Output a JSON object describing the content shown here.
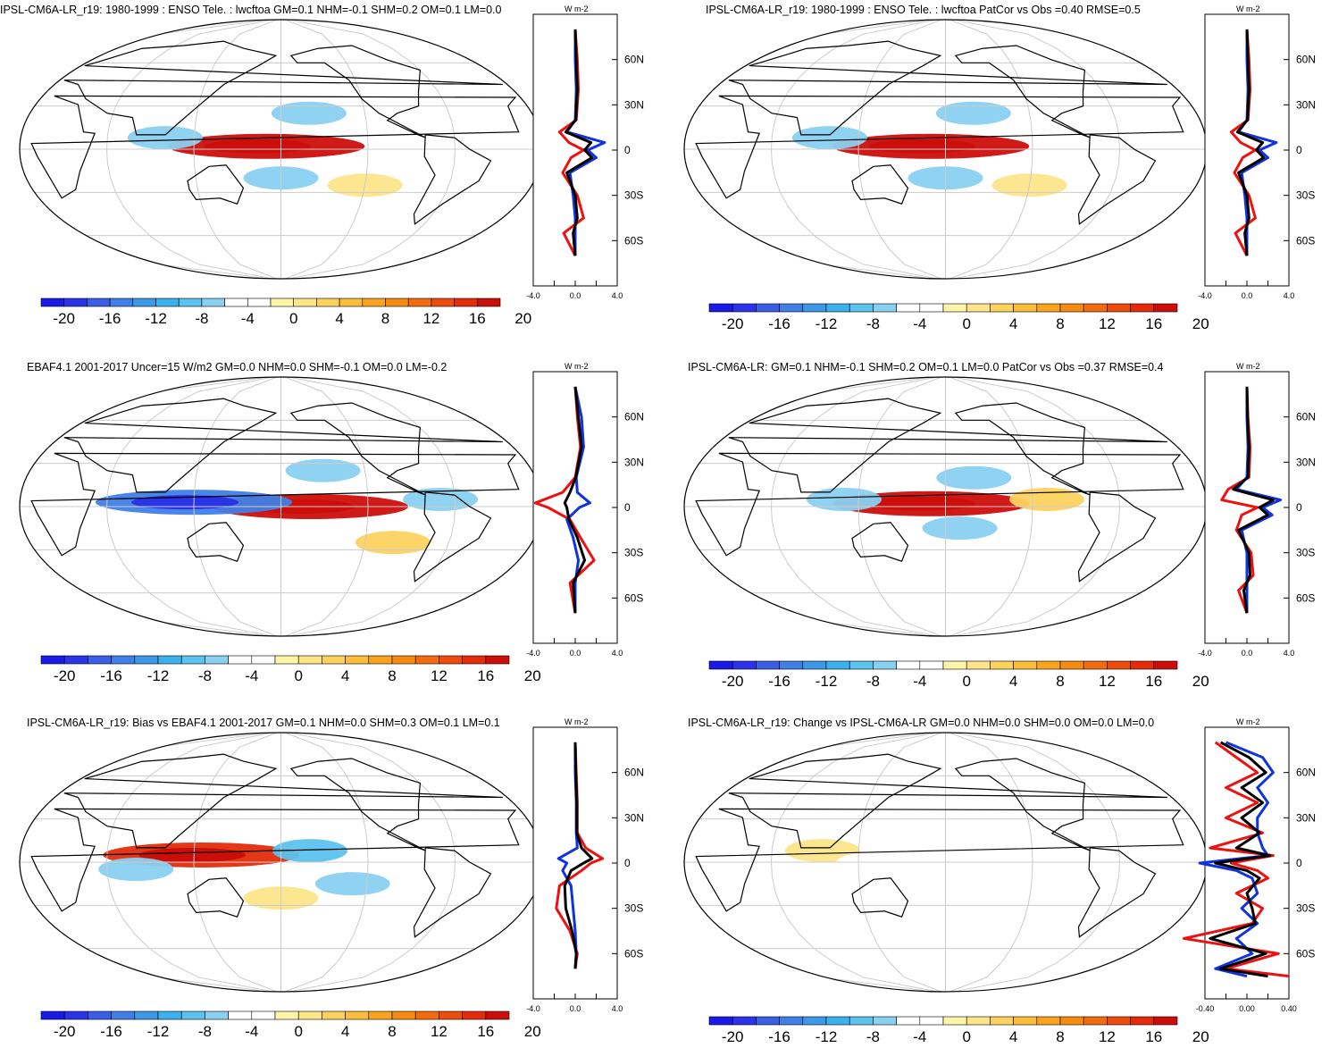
{
  "colorbar": {
    "labels": [
      "-20",
      "-16",
      "-12",
      "-8",
      "-4",
      "0",
      "4",
      "8",
      "12",
      "16",
      "20"
    ],
    "colors": [
      "#1a1ae6",
      "#2b33e6",
      "#3a5ee6",
      "#3f7fe6",
      "#3d99e6",
      "#3cb2ec",
      "#5cc3ee",
      "#8ad0f0",
      "#ffffff",
      "#ffffff",
      "#fff5a8",
      "#fde58a",
      "#fcd25f",
      "#fbbd3a",
      "#f9a41e",
      "#f68b12",
      "#f26b0e",
      "#ec4c0c",
      "#e22c0b",
      "#cc0e0b"
    ]
  },
  "zonal_axis": {
    "unit": "W m-2",
    "lat_labels": [
      "60N",
      "30N",
      "0",
      "30S",
      "60S"
    ],
    "series_colors": {
      "model": "#ee1111",
      "obs": "#1133dd",
      "mean": "#000000"
    }
  },
  "panels": [
    {
      "title": "IPSL-CM6A-LR_r19: 1980-1999 : ENSO Tele. : lwcftoa GM=0.1 NHM=-0.1 SHM=0.2 OM=0.1 LM=0.0",
      "x_ticks": [
        "-4.0",
        "0.0",
        "4.0"
      ]
    },
    {
      "title": "IPSL-CM6A-LR_r19: 1980-1999 : ENSO Tele. : lwcftoa PatCor vs Obs =0.40 RMSE=0.5",
      "x_ticks": [
        "-4.0",
        "0.0",
        "4.0"
      ]
    },
    {
      "title": "EBAF4.1 2001-2017 Uncer=15 W/m2 GM=0.0 NHM=0.0 SHM=-0.1 OM=0.0 LM=-0.2",
      "x_ticks": [
        "-4.0",
        "0.0",
        "4.0"
      ]
    },
    {
      "title": "IPSL-CM6A-LR: GM=0.1 NHM=-0.1 SHM=0.2 OM=0.1 LM=0.0 PatCor vs Obs =0.37 RMSE=0.4",
      "x_ticks": [
        "-4.0",
        "0.0",
        "4.0"
      ]
    },
    {
      "title": "IPSL-CM6A-LR_r19: Bias vs EBAF4.1 2001-2017 GM=0.1 NHM=0.0 SHM=0.3 OM=0.1 LM=0.1",
      "x_ticks": [
        "-4.0",
        "0.0",
        "4.0"
      ]
    },
    {
      "title": "IPSL-CM6A-LR_r19: Change vs IPSL-CM6A-LR GM=0.0 NHM=0.0 SHM=0.0 OM=0.0 LM=0.0",
      "x_ticks": [
        "-0.40",
        "0.00",
        "0.40"
      ]
    }
  ],
  "chart_data": [
    {
      "type": "heatmap",
      "panel": 0,
      "projection": "Robinson, 180E centered",
      "value_range": [
        -20,
        20
      ],
      "features": [
        {
          "desc": "warm",
          "lon": 170,
          "lat": 2,
          "value": 18
        },
        {
          "desc": "cool",
          "lon": 200,
          "lat": 25,
          "value": -6
        },
        {
          "desc": "cool",
          "lon": 180,
          "lat": -20,
          "value": -6
        },
        {
          "desc": "cool",
          "lon": 100,
          "lat": 8,
          "value": -6
        },
        {
          "desc": "warm",
          "lon": 240,
          "lat": -25,
          "value": 3
        }
      ]
    },
    {
      "type": "line",
      "panel": 0,
      "xlim": [
        -4,
        4
      ],
      "ylim": [
        -90,
        90
      ],
      "series": [
        {
          "lat": [
            80,
            60,
            40,
            20,
            12,
            5,
            0,
            -5,
            -15,
            -30,
            -45,
            -55,
            -70
          ],
          "values": [
            0,
            0.2,
            0.3,
            0.1,
            -1.5,
            -0.6,
            0.8,
            -0.4,
            -1.2,
            0.2,
            0.8,
            -1.1,
            0
          ]
        },
        {
          "lat": [
            80,
            60,
            40,
            20,
            12,
            5,
            0,
            -5,
            -15,
            -30,
            -45,
            -55,
            -70
          ],
          "values": [
            0,
            0,
            0.1,
            0,
            -0.8,
            2.8,
            1.2,
            2.0,
            -0.5,
            -0.2,
            0,
            0,
            0
          ]
        },
        {
          "lat": [
            80,
            60,
            40,
            20,
            12,
            5,
            0,
            -5,
            -15,
            -30,
            -45,
            -55,
            -70
          ],
          "values": [
            0,
            0.1,
            0.2,
            0.05,
            -0.9,
            1.5,
            0.9,
            1.6,
            -0.8,
            0,
            0.2,
            -0.2,
            0
          ]
        }
      ]
    },
    {
      "type": "heatmap",
      "panel": 1,
      "projection": "Robinson, 180E centered",
      "value_range": [
        -20,
        20
      ],
      "features": [
        {
          "desc": "warm",
          "lon": 170,
          "lat": 2,
          "value": 18
        },
        {
          "desc": "cool",
          "lon": 200,
          "lat": 25,
          "value": -6
        },
        {
          "desc": "cool",
          "lon": 180,
          "lat": -20,
          "value": -6
        },
        {
          "desc": "cool",
          "lon": 100,
          "lat": 8,
          "value": -6
        },
        {
          "desc": "warm",
          "lon": 240,
          "lat": -25,
          "value": 3
        }
      ]
    },
    {
      "type": "line",
      "panel": 1,
      "xlim": [
        -4,
        4
      ],
      "ylim": [
        -90,
        90
      ],
      "series": [
        {
          "lat": [
            80,
            60,
            40,
            20,
            12,
            5,
            0,
            -5,
            -15,
            -30,
            -45,
            -55,
            -70
          ],
          "values": [
            0,
            0.2,
            0.3,
            0.1,
            -1.5,
            -0.6,
            0.8,
            -0.4,
            -1.2,
            0.2,
            0.8,
            -1.1,
            0
          ]
        },
        {
          "lat": [
            80,
            60,
            40,
            20,
            12,
            5,
            0,
            -5,
            -15,
            -30,
            -45,
            -55,
            -70
          ],
          "values": [
            0,
            0,
            0.1,
            0,
            -0.8,
            2.8,
            1.2,
            2.0,
            -0.5,
            -0.2,
            0,
            0,
            0
          ]
        },
        {
          "lat": [
            80,
            60,
            40,
            20,
            12,
            5,
            0,
            -5,
            -15,
            -30,
            -45,
            -55,
            -70
          ],
          "values": [
            0,
            0.1,
            0.2,
            0.05,
            -0.9,
            1.5,
            0.9,
            1.6,
            -0.8,
            0,
            0.2,
            -0.2,
            0
          ]
        }
      ]
    },
    {
      "type": "heatmap",
      "panel": 2,
      "projection": "Robinson, 180E centered",
      "value_range": [
        -20,
        20
      ],
      "features": [
        {
          "desc": "warm",
          "lon": 200,
          "lat": 0,
          "value": 18
        },
        {
          "desc": "cool",
          "lon": 120,
          "lat": 3,
          "value": -14
        },
        {
          "desc": "cool",
          "lon": 210,
          "lat": 25,
          "value": -6
        },
        {
          "desc": "warm",
          "lon": 260,
          "lat": -25,
          "value": 4
        },
        {
          "desc": "cool",
          "lon": 290,
          "lat": 5,
          "value": -6
        }
      ]
    },
    {
      "type": "line",
      "panel": 2,
      "xlim": [
        -4,
        4
      ],
      "ylim": [
        -90,
        90
      ],
      "series": [
        {
          "lat": [
            80,
            60,
            40,
            20,
            10,
            3,
            0,
            -8,
            -20,
            -35,
            -50,
            -70
          ],
          "values": [
            0,
            0.2,
            0.5,
            0,
            -1.2,
            -3.8,
            -2.6,
            -0.5,
            0.5,
            1.8,
            -0.5,
            0
          ]
        },
        {
          "lat": [
            80,
            60,
            40,
            20,
            10,
            3,
            0,
            -8,
            -20,
            -35,
            -50,
            -70
          ],
          "values": [
            0,
            0.6,
            0.8,
            0.1,
            0.2,
            1.4,
            0.4,
            -0.8,
            -0.2,
            0.3,
            0,
            0
          ]
        },
        {
          "lat": [
            80,
            60,
            40,
            20,
            10,
            3,
            0,
            -8,
            -20,
            -35,
            -50,
            -70
          ],
          "values": [
            0,
            0.3,
            0.6,
            0.05,
            -0.5,
            -1.0,
            -0.8,
            -0.6,
            0.2,
            0.9,
            -0.2,
            0
          ]
        }
      ]
    },
    {
      "type": "heatmap",
      "panel": 3,
      "projection": "Robinson, 180E centered",
      "value_range": [
        -20,
        20
      ],
      "features": [
        {
          "desc": "warm",
          "lon": 170,
          "lat": 2,
          "value": 18
        },
        {
          "desc": "cool",
          "lon": 200,
          "lat": 20,
          "value": -6
        },
        {
          "desc": "cool",
          "lon": 110,
          "lat": 5,
          "value": -6
        },
        {
          "desc": "cool",
          "lon": 190,
          "lat": -15,
          "value": -6
        },
        {
          "desc": "warm",
          "lon": 250,
          "lat": 5,
          "value": 4
        }
      ]
    },
    {
      "type": "line",
      "panel": 3,
      "xlim": [
        -4,
        4
      ],
      "ylim": [
        -90,
        90
      ],
      "series": [
        {
          "lat": [
            80,
            60,
            40,
            20,
            12,
            5,
            0,
            -5,
            -15,
            -30,
            -45,
            -55,
            -70
          ],
          "values": [
            0,
            0.1,
            0.3,
            0.2,
            -1.8,
            -2.4,
            1.0,
            -0.5,
            -1.0,
            0.4,
            0.6,
            -0.8,
            0
          ]
        },
        {
          "lat": [
            80,
            60,
            40,
            20,
            12,
            5,
            0,
            -5,
            -15,
            -30,
            -45,
            -55,
            -70
          ],
          "values": [
            0,
            0,
            0.1,
            0,
            -1.0,
            3.2,
            1.5,
            2.4,
            -0.5,
            0,
            0,
            0,
            0
          ]
        },
        {
          "lat": [
            80,
            60,
            40,
            20,
            12,
            5,
            0,
            -5,
            -15,
            -30,
            -45,
            -55,
            -70
          ],
          "values": [
            0,
            0.05,
            0.2,
            0.1,
            -1.3,
            2.5,
            1.2,
            2.0,
            -0.8,
            0.2,
            0.3,
            -0.3,
            0
          ]
        }
      ]
    },
    {
      "type": "heatmap",
      "panel": 4,
      "projection": "Robinson, 180E centered",
      "value_range": [
        -20,
        20
      ],
      "features": [
        {
          "desc": "warm",
          "lon": 125,
          "lat": 5,
          "value": 16
        },
        {
          "desc": "cool",
          "lon": 200,
          "lat": 8,
          "value": -8
        },
        {
          "desc": "cool",
          "lon": 80,
          "lat": -5,
          "value": -6
        },
        {
          "desc": "cool",
          "lon": 230,
          "lat": -15,
          "value": -6
        },
        {
          "desc": "warm",
          "lon": 180,
          "lat": -25,
          "value": 3
        }
      ]
    },
    {
      "type": "line",
      "panel": 4,
      "xlim": [
        -4,
        4
      ],
      "ylim": [
        -90,
        90
      ],
      "series": [
        {
          "lat": [
            80,
            60,
            40,
            20,
            10,
            3,
            0,
            -5,
            -15,
            -30,
            -45,
            -60,
            -70
          ],
          "values": [
            0,
            0.1,
            0.2,
            0.2,
            1.0,
            2.6,
            1.5,
            0.6,
            -1.5,
            -1.8,
            -0.5,
            0.2,
            0
          ]
        },
        {
          "lat": [
            80,
            60,
            40,
            20,
            10,
            3,
            0,
            -5,
            -15,
            -30,
            -45,
            -60,
            -70
          ],
          "values": [
            0,
            0,
            0.1,
            0.1,
            0.2,
            -1.6,
            -0.8,
            -1.2,
            -0.4,
            -0.2,
            0,
            0.1,
            0
          ]
        },
        {
          "lat": [
            80,
            60,
            40,
            20,
            10,
            3,
            0,
            -5,
            -15,
            -30,
            -45,
            -60,
            -70
          ],
          "values": [
            0,
            0.05,
            0.15,
            0.15,
            0.6,
            1.6,
            0.8,
            -0.4,
            -1.0,
            -0.9,
            -0.3,
            0.1,
            0
          ]
        }
      ]
    },
    {
      "type": "heatmap",
      "panel": 5,
      "projection": "Robinson, 180E centered",
      "value_range": [
        -20,
        20
      ],
      "features": [
        {
          "desc": "warm",
          "lon": 95,
          "lat": 8,
          "value": 3
        },
        {
          "desc": "cool",
          "lon": 130,
          "lat": -1,
          "value": -3
        },
        {
          "desc": "cool",
          "lon": 220,
          "lat": 5,
          "value": -3
        }
      ]
    },
    {
      "type": "line",
      "panel": 5,
      "xlim": [
        -0.4,
        0.4
      ],
      "ylim": [
        -90,
        90
      ],
      "series": [
        {
          "lat": [
            80,
            70,
            60,
            50,
            40,
            30,
            20,
            10,
            5,
            0,
            -5,
            -10,
            -20,
            -30,
            -40,
            -50,
            -60,
            -70,
            -75
          ],
          "values": [
            -0.3,
            -0.1,
            0.1,
            -0.2,
            0.1,
            -0.2,
            0.15,
            -0.35,
            0.25,
            -0.15,
            0.1,
            0.2,
            -0.1,
            0.15,
            0.05,
            -0.6,
            0.3,
            -0.2,
            0.4
          ]
        },
        {
          "lat": [
            80,
            70,
            60,
            50,
            40,
            30,
            20,
            10,
            5,
            0,
            -5,
            -10,
            -20,
            -30,
            -40,
            -50,
            -60,
            -70,
            -75
          ],
          "values": [
            -0.2,
            0.15,
            0.25,
            0.1,
            0.2,
            0.1,
            0.1,
            0.15,
            0.2,
            -0.45,
            -0.1,
            0.05,
            0.1,
            -0.05,
            0.1,
            -0.1,
            0.05,
            -0.3,
            0
          ]
        },
        {
          "lat": [
            80,
            70,
            60,
            50,
            40,
            30,
            20,
            10,
            5,
            0,
            -5,
            -10,
            -20,
            -30,
            -40,
            -50,
            -60,
            -70,
            -75
          ],
          "values": [
            -0.25,
            0.02,
            0.18,
            -0.05,
            0.15,
            -0.05,
            0.12,
            -0.1,
            0.22,
            -0.3,
            0,
            0.12,
            0,
            0.05,
            0.08,
            -0.35,
            0.18,
            -0.25,
            0.2
          ]
        }
      ]
    }
  ]
}
